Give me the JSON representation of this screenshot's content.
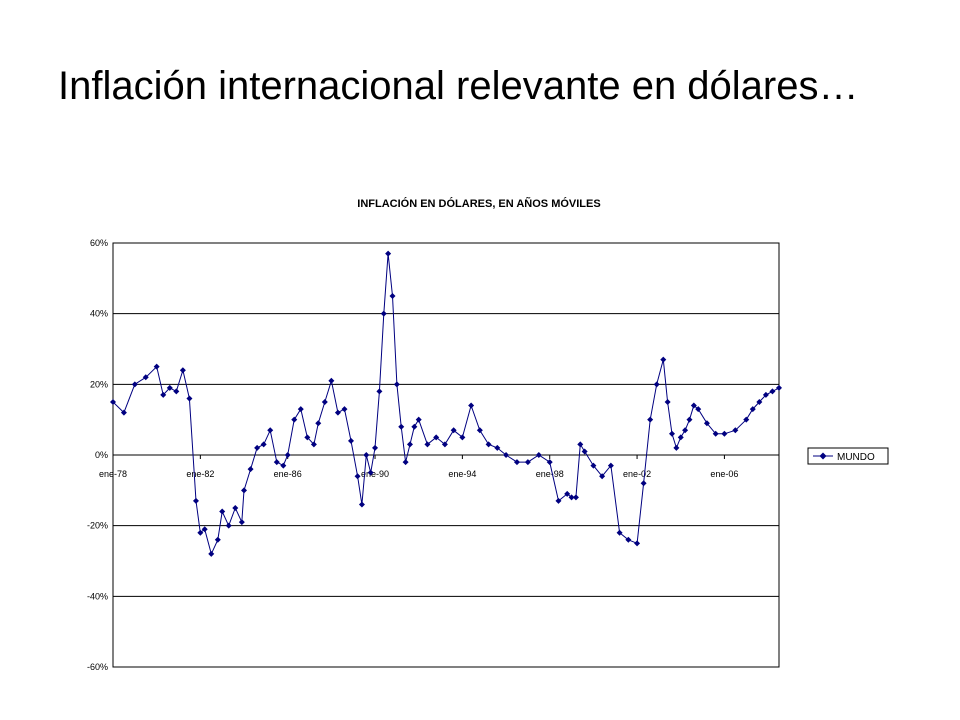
{
  "slide": {
    "title": "Inflación internacional relevante en dólares…"
  },
  "chart_data": {
    "type": "line",
    "title": "INFLACIÓN EN DÓLARES, EN AÑOS MÓVILES",
    "xlabel": "",
    "ylabel": "",
    "ylim": [
      -60,
      60
    ],
    "yticks": [
      60,
      40,
      20,
      0,
      -20,
      -40,
      -60
    ],
    "ytick_labels": [
      "60%",
      "40%",
      "20%",
      "0%",
      "-20%",
      "-40%",
      "-60%"
    ],
    "xtick_labels": [
      "ene-78",
      "ene-82",
      "ene-86",
      "ene-90",
      "ene-94",
      "ene-98",
      "ene-02",
      "ene-06"
    ],
    "xlim_years": [
      1978.0,
      2008.5
    ],
    "grid": "horizontal",
    "legend": "right",
    "colors": {
      "line": "#000080",
      "marker": "#000080",
      "grid": "#000000"
    },
    "series": [
      {
        "name": "MUNDO",
        "x": [
          1978.0,
          1978.5,
          1979.0,
          1979.5,
          1980.0,
          1980.3,
          1980.6,
          1980.9,
          1981.2,
          1981.5,
          1981.8,
          1982.0,
          1982.2,
          1982.5,
          1982.8,
          1983.0,
          1983.3,
          1983.6,
          1983.9,
          1984.0,
          1984.3,
          1984.6,
          1984.9,
          1985.2,
          1985.5,
          1985.8,
          1986.0,
          1986.3,
          1986.6,
          1986.9,
          1987.2,
          1987.4,
          1987.7,
          1988.0,
          1988.3,
          1988.6,
          1988.9,
          1989.2,
          1989.4,
          1989.6,
          1989.8,
          1990.0,
          1990.2,
          1990.4,
          1990.6,
          1990.8,
          1991.0,
          1991.2,
          1991.4,
          1991.6,
          1991.8,
          1992.0,
          1992.4,
          1992.8,
          1993.2,
          1993.6,
          1994.0,
          1994.4,
          1994.8,
          1995.2,
          1995.6,
          1996.0,
          1996.5,
          1997.0,
          1997.5,
          1998.0,
          1998.4,
          1998.8,
          1999.0,
          1999.2,
          1999.4,
          1999.6,
          2000.0,
          2000.4,
          2000.8,
          2001.2,
          2001.6,
          2002.0,
          2002.3,
          2002.6,
          2002.9,
          2003.2,
          2003.4,
          2003.6,
          2003.8,
          2004.0,
          2004.2,
          2004.4,
          2004.6,
          2004.8,
          2005.2,
          2005.6,
          2006.0,
          2006.5,
          2007.0,
          2007.3,
          2007.6,
          2007.9,
          2008.2,
          2008.5
        ],
        "values": [
          15,
          12,
          20,
          22,
          25,
          17,
          19,
          18,
          24,
          16,
          -13,
          -22,
          -21,
          -28,
          -24,
          -16,
          -20,
          -15,
          -19,
          -10,
          -4,
          2,
          3,
          7,
          -2,
          -3,
          0,
          10,
          13,
          5,
          3,
          9,
          15,
          21,
          12,
          13,
          4,
          -6,
          -14,
          0,
          -5,
          2,
          18,
          40,
          57,
          45,
          20,
          8,
          -2,
          3,
          8,
          10,
          3,
          5,
          3,
          7,
          5,
          14,
          7,
          3,
          2,
          0,
          -2,
          -2,
          0,
          -2,
          -13,
          -11,
          -12,
          -12,
          3,
          1,
          -3,
          -6,
          -3,
          -22,
          -24,
          -25,
          -8,
          10,
          20,
          27,
          15,
          6,
          2,
          5,
          7,
          10,
          14,
          13,
          9,
          6,
          6,
          7,
          10,
          13,
          15,
          17,
          18,
          19
        ]
      }
    ]
  }
}
